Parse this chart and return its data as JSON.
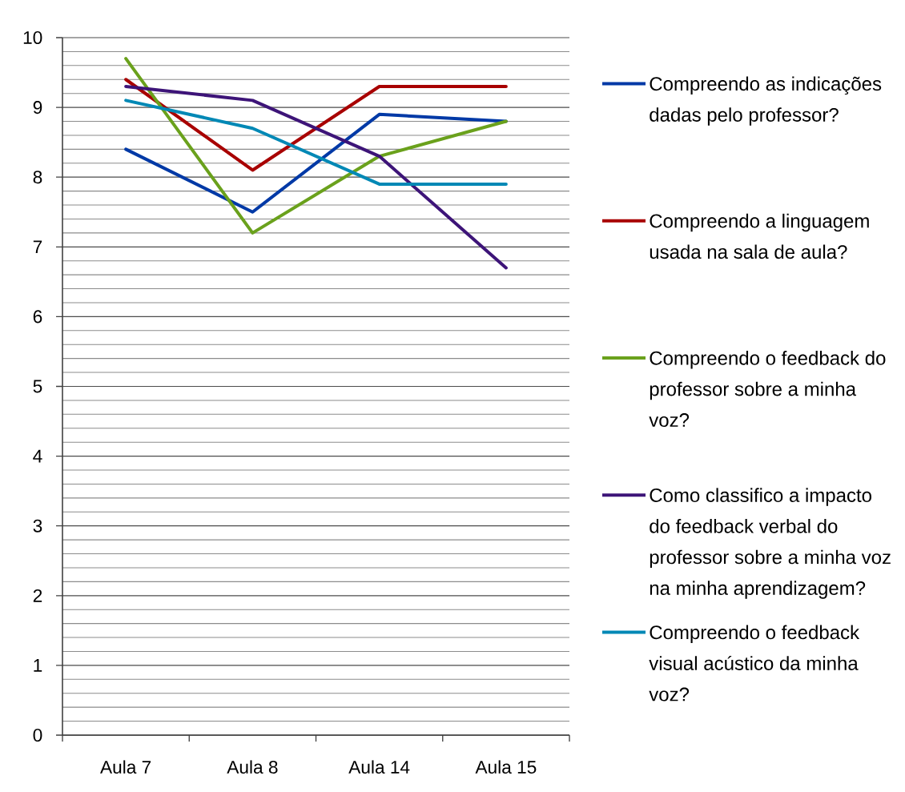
{
  "chart_data": {
    "type": "line",
    "categories": [
      "Aula 7",
      "Aula 8",
      "Aula 14",
      "Aula 15"
    ],
    "series": [
      {
        "name": "Compreendo as indicações dadas pelo professor?",
        "color": "#0039a6",
        "values": [
          8.4,
          7.5,
          8.9,
          8.8
        ]
      },
      {
        "name": "Compreendo a linguagem usada na sala de aula?",
        "color": "#a80000",
        "values": [
          9.4,
          8.1,
          9.3,
          9.3
        ]
      },
      {
        "name": "Compreendo o feedback do professor sobre a minha voz?",
        "color": "#6aa11c",
        "values": [
          9.7,
          7.2,
          8.3,
          8.8
        ]
      },
      {
        "name": "Como classifico a impacto do feedback verbal do professor sobre a minha voz na minha aprendizagem?",
        "color": "#3d1478",
        "values": [
          9.3,
          9.1,
          8.3,
          6.7
        ]
      },
      {
        "name": "Compreendo o feedback visual acústico da minha voz?",
        "color": "#0088b5",
        "values": [
          9.1,
          8.7,
          7.9,
          7.9
        ]
      }
    ],
    "ylim": [
      0,
      10
    ],
    "yticks": [
      0,
      1,
      2,
      3,
      4,
      5,
      6,
      7,
      8,
      9,
      10
    ],
    "grid": "y",
    "legend": "right"
  }
}
